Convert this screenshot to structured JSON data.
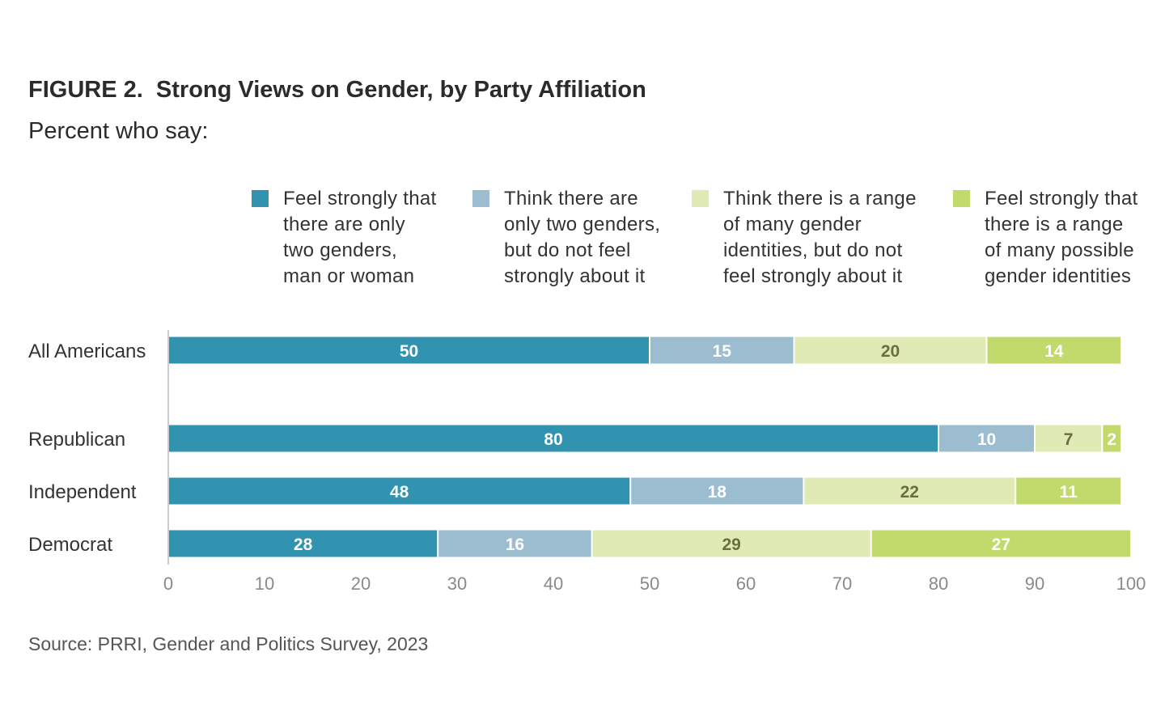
{
  "title": "FIGURE 2.  Strong Views on Gender, by Party Affiliation",
  "subtitle": "Percent who say:",
  "source": "Source: PRRI, Gender and Politics Survey, 2023",
  "colors": {
    "series1": "#3193B0",
    "series2": "#9CBDD0",
    "series3": "#DFEAB4",
    "series4": "#C2D96B",
    "axis": "#cccccc",
    "tick_text": "#8a8a8a"
  },
  "legend": [
    {
      "lines": [
        "Feel strongly that",
        "there are only",
        "two genders,",
        "man or woman"
      ]
    },
    {
      "lines": [
        "Think there are",
        "only two genders,",
        "but do not feel",
        "strongly about it"
      ]
    },
    {
      "lines": [
        "Think there is a range",
        "of many gender",
        "identities, but do not",
        "feel strongly about it"
      ]
    },
    {
      "lines": [
        "Feel strongly that",
        "there is a range",
        "of many possible",
        "gender identities"
      ]
    }
  ],
  "chart_data": {
    "type": "bar",
    "orientation": "horizontal",
    "stacked": true,
    "categories": [
      "All Americans",
      "Republican",
      "Independent",
      "Democrat"
    ],
    "series": [
      {
        "name": "Feel strongly that there are only two genders, man or woman",
        "values": [
          50,
          80,
          48,
          28
        ]
      },
      {
        "name": "Think there are only two genders, but do not feel strongly about it",
        "values": [
          15,
          10,
          18,
          16
        ]
      },
      {
        "name": "Think there is a range of many gender identities, but do not feel strongly about it",
        "values": [
          20,
          7,
          22,
          29
        ]
      },
      {
        "name": "Feel strongly that there is a range of many possible gender identities",
        "values": [
          14,
          2,
          11,
          27
        ]
      }
    ],
    "xlim": [
      0,
      100
    ],
    "xticks": [
      "0",
      "10",
      "20",
      "30",
      "40",
      "50",
      "60",
      "70",
      "80",
      "90",
      "100"
    ],
    "grid": false,
    "legend_position": "top"
  }
}
